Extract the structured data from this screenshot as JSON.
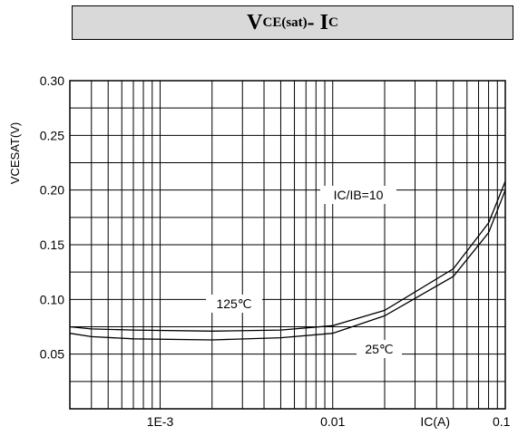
{
  "title": {
    "main": "V",
    "sub1": "CE(sat)",
    "mid": "- I",
    "sub2": "C"
  },
  "chart_data": {
    "type": "line",
    "xscale": "log",
    "ylabel": "VCESAT(V)",
    "xlabel": "IC(A)",
    "xlim": [
      0.0003,
      0.1
    ],
    "ylim": [
      0.0,
      0.3
    ],
    "grid": true,
    "x_tick_labels": [
      {
        "value": 0.001,
        "label": "1E-3"
      },
      {
        "value": 0.01,
        "label": "0.01"
      },
      {
        "value": 0.1,
        "label": "0.1"
      }
    ],
    "y_tick_labels": [
      {
        "value": 0.3,
        "label": "0.30"
      },
      {
        "value": 0.25,
        "label": "0.25"
      },
      {
        "value": 0.2,
        "label": "0.20"
      },
      {
        "value": 0.15,
        "label": "0.15"
      },
      {
        "value": 0.1,
        "label": "0.10"
      },
      {
        "value": 0.05,
        "label": "0.05"
      }
    ],
    "series": [
      {
        "name": "125℃",
        "x": [
          0.0003,
          0.0004,
          0.0007,
          0.002,
          0.005,
          0.01,
          0.02,
          0.05,
          0.08,
          0.1
        ],
        "y": [
          0.075,
          0.073,
          0.072,
          0.071,
          0.072,
          0.076,
          0.09,
          0.128,
          0.17,
          0.208
        ]
      },
      {
        "name": "25℃",
        "x": [
          0.0003,
          0.0004,
          0.0007,
          0.002,
          0.005,
          0.01,
          0.02,
          0.05,
          0.08,
          0.1
        ],
        "y": [
          0.069,
          0.066,
          0.064,
          0.063,
          0.065,
          0.069,
          0.085,
          0.121,
          0.161,
          0.2
        ]
      }
    ],
    "annotations": [
      {
        "text": "IC/IB=10"
      },
      {
        "text": "125℃"
      },
      {
        "text": "25℃"
      }
    ]
  }
}
